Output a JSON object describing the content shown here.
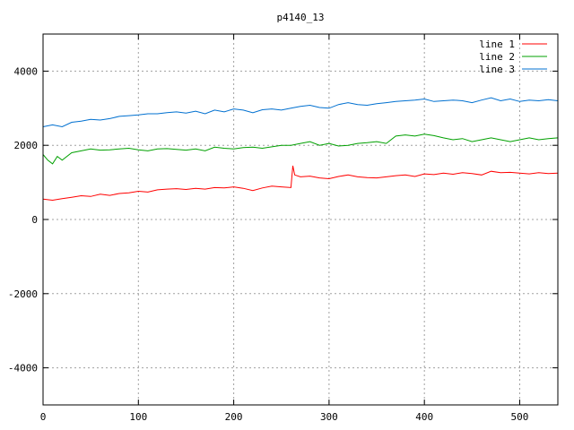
{
  "chart_data": {
    "type": "line",
    "title": "p4140_13",
    "xlabel": "",
    "ylabel": "",
    "xlim": [
      0,
      540
    ],
    "ylim": [
      -5000,
      5000
    ],
    "x_ticks": [
      0,
      100,
      200,
      300,
      400,
      500
    ],
    "y_ticks": [
      -4000,
      -2000,
      0,
      2000,
      4000
    ],
    "x_tick_labels": [
      "0",
      "100",
      "200",
      "300",
      "400",
      "500"
    ],
    "y_tick_labels": [
      "-4000",
      "-2000",
      "0",
      "2000",
      "4000"
    ],
    "grid": true,
    "legend_position": "top-right",
    "series": [
      {
        "name": "line 1",
        "color": "#ff0000",
        "x": [
          0,
          10,
          20,
          30,
          40,
          50,
          60,
          70,
          80,
          90,
          100,
          110,
          120,
          130,
          140,
          150,
          160,
          170,
          180,
          190,
          200,
          210,
          220,
          230,
          240,
          250,
          260,
          262,
          264,
          270,
          280,
          290,
          300,
          310,
          320,
          330,
          340,
          350,
          360,
          370,
          380,
          390,
          400,
          410,
          420,
          430,
          440,
          450,
          460,
          470,
          480,
          490,
          500,
          510,
          520,
          530,
          540
        ],
        "y": [
          550,
          520,
          560,
          600,
          640,
          620,
          680,
          650,
          700,
          720,
          760,
          740,
          800,
          820,
          830,
          810,
          840,
          820,
          860,
          850,
          880,
          840,
          780,
          850,
          900,
          880,
          860,
          1450,
          1200,
          1150,
          1170,
          1120,
          1100,
          1160,
          1200,
          1150,
          1130,
          1120,
          1150,
          1180,
          1200,
          1160,
          1230,
          1210,
          1250,
          1220,
          1260,
          1240,
          1200,
          1300,
          1260,
          1270,
          1250,
          1230,
          1260,
          1240,
          1250
        ]
      },
      {
        "name": "line 2",
        "color": "#00a000",
        "x": [
          0,
          5,
          10,
          15,
          20,
          30,
          40,
          50,
          60,
          70,
          80,
          90,
          100,
          110,
          120,
          130,
          140,
          150,
          160,
          170,
          180,
          190,
          200,
          210,
          220,
          230,
          240,
          250,
          260,
          270,
          280,
          290,
          300,
          310,
          320,
          330,
          340,
          350,
          360,
          370,
          380,
          390,
          400,
          410,
          420,
          430,
          440,
          450,
          460,
          470,
          480,
          490,
          500,
          510,
          520,
          530,
          540
        ],
        "y": [
          1750,
          1600,
          1500,
          1700,
          1600,
          1800,
          1850,
          1900,
          1870,
          1880,
          1900,
          1920,
          1880,
          1850,
          1900,
          1910,
          1890,
          1870,
          1900,
          1850,
          1950,
          1920,
          1900,
          1940,
          1950,
          1920,
          1960,
          2000,
          2000,
          2050,
          2100,
          2000,
          2050,
          1980,
          2000,
          2050,
          2070,
          2100,
          2050,
          2250,
          2280,
          2250,
          2300,
          2260,
          2200,
          2150,
          2180,
          2100,
          2150,
          2200,
          2150,
          2100,
          2150,
          2200,
          2150,
          2180,
          2200
        ]
      },
      {
        "name": "line 3",
        "color": "#0070d0",
        "x": [
          0,
          10,
          20,
          30,
          40,
          50,
          60,
          70,
          80,
          90,
          100,
          110,
          120,
          130,
          140,
          150,
          160,
          170,
          180,
          190,
          200,
          210,
          220,
          230,
          240,
          250,
          260,
          270,
          280,
          290,
          300,
          310,
          320,
          330,
          340,
          350,
          360,
          370,
          380,
          390,
          400,
          410,
          420,
          430,
          440,
          450,
          460,
          470,
          480,
          490,
          500,
          510,
          520,
          530,
          540
        ],
        "y": [
          2500,
          2550,
          2500,
          2620,
          2650,
          2700,
          2680,
          2720,
          2780,
          2800,
          2820,
          2850,
          2850,
          2880,
          2900,
          2870,
          2920,
          2850,
          2950,
          2900,
          2980,
          2950,
          2880,
          2960,
          2980,
          2950,
          3000,
          3050,
          3080,
          3020,
          3000,
          3100,
          3150,
          3100,
          3080,
          3120,
          3150,
          3180,
          3200,
          3220,
          3250,
          3180,
          3200,
          3220,
          3200,
          3150,
          3220,
          3280,
          3200,
          3250,
          3180,
          3220,
          3200,
          3230,
          3200
        ]
      }
    ]
  }
}
